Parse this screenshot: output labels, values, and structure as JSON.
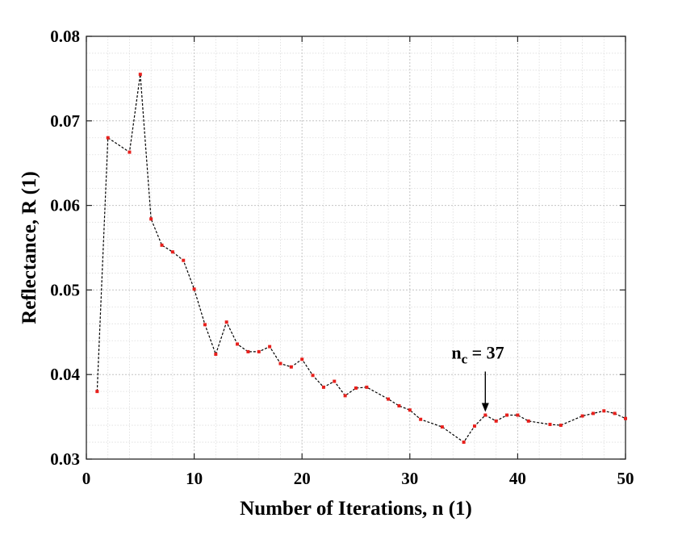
{
  "chart_data": {
    "type": "line",
    "xlabel": "Number of Iterations, n (1)",
    "ylabel": "Reflectance, R (1)",
    "xlim": [
      0,
      50
    ],
    "ylim": [
      0.03,
      0.08
    ],
    "xticks": [
      0,
      10,
      20,
      30,
      40,
      50
    ],
    "yticks": [
      0.03,
      0.04,
      0.05,
      0.06,
      0.07,
      0.08
    ],
    "xtick_labels": [
      "0",
      "10",
      "20",
      "30",
      "40",
      "50"
    ],
    "ytick_labels": [
      "0.03",
      "0.04",
      "0.05",
      "0.06",
      "0.07",
      "0.08"
    ],
    "grid": true,
    "minor_grid": true,
    "line_color": "#000000",
    "line_style": "dashed",
    "marker_color": "#e8201c",
    "x": [
      1,
      2,
      4,
      5,
      6,
      7,
      8,
      9,
      10,
      11,
      12,
      13,
      14,
      15,
      16,
      17,
      18,
      19,
      20,
      21,
      22,
      23,
      24,
      25,
      26,
      28,
      29,
      30,
      31,
      33,
      35,
      36,
      37,
      38,
      39,
      40,
      41,
      43,
      44,
      46,
      47,
      48,
      49,
      50
    ],
    "y": [
      0.038,
      0.068,
      0.0663,
      0.0755,
      0.0584,
      0.0553,
      0.0545,
      0.0535,
      0.0501,
      0.0459,
      0.0424,
      0.0462,
      0.0436,
      0.0427,
      0.0427,
      0.0433,
      0.0413,
      0.0409,
      0.0418,
      0.0399,
      0.0385,
      0.0392,
      0.0375,
      0.0384,
      0.0385,
      0.0371,
      0.0363,
      0.0358,
      0.0347,
      0.0338,
      0.032,
      0.0339,
      0.0352,
      0.0345,
      0.0352,
      0.0352,
      0.0345,
      0.0341,
      0.034,
      0.0351,
      0.0354,
      0.0357,
      0.0354,
      0.0348
    ],
    "annotation": {
      "label_main": "n",
      "label_sub": "c",
      "label_rest": " = 37",
      "target_x": 37,
      "target_y": 0.0352
    }
  }
}
